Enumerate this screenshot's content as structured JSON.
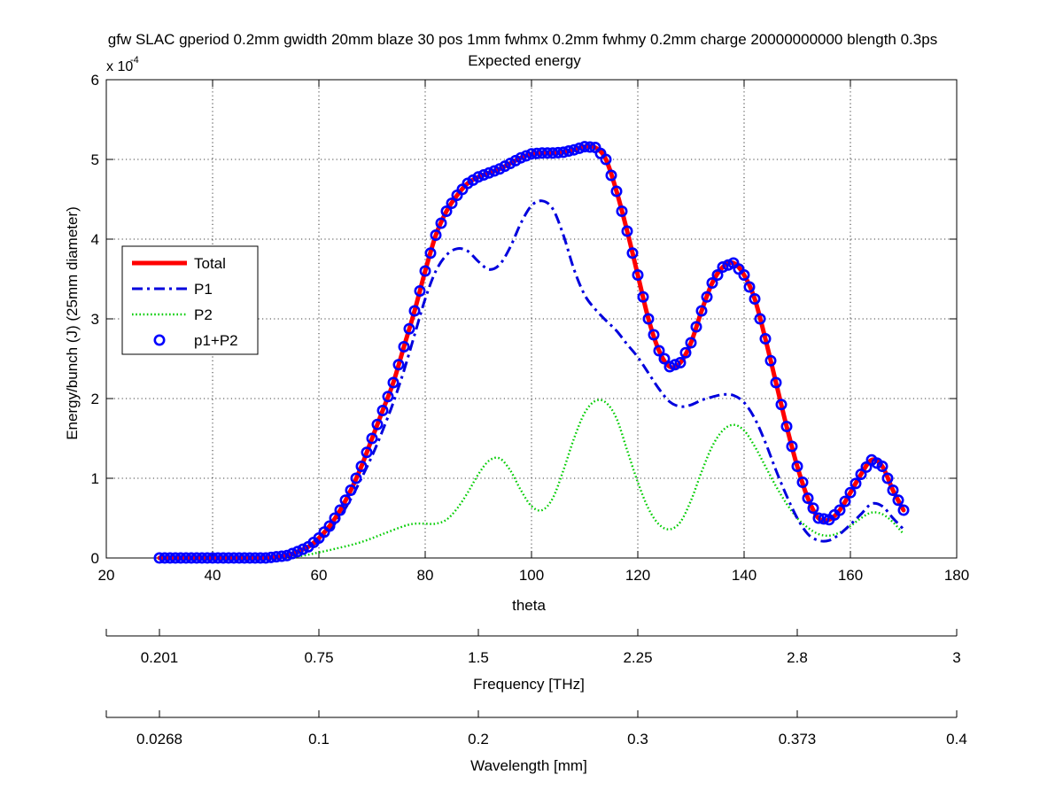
{
  "chart_data": {
    "type": "line",
    "title": "gfw SLAC gperiod 0.2mm gwidth 20mm blaze 30 pos 1mm fwhmx 0.2mm fwhmy 0.2mm charge 20000000000 blength 0.3ps",
    "subtitle": "Expected energy",
    "xlabel": "theta",
    "ylabel": "Energy/bunch (J) (25mm diameter)",
    "y_exponent_label": "x 10",
    "y_exponent_power": "-4",
    "xlim": [
      20,
      180
    ],
    "ylim": [
      0,
      6
    ],
    "x_ticks": [
      20,
      40,
      60,
      80,
      100,
      120,
      140,
      160,
      180
    ],
    "y_ticks": [
      0,
      1,
      2,
      3,
      4,
      5,
      6
    ],
    "grid": true,
    "legend_position": "left-middle",
    "secondary_axes": [
      {
        "label": "Frequency [THz]",
        "ticks": [
          {
            "theta": 20,
            "label": ""
          },
          {
            "theta": 30,
            "label": "0.201"
          },
          {
            "theta": 60,
            "label": "0.75"
          },
          {
            "theta": 90,
            "label": "1.5"
          },
          {
            "theta": 120,
            "label": "2.25"
          },
          {
            "theta": 150,
            "label": "2.8"
          },
          {
            "theta": 180,
            "label": "3"
          }
        ]
      },
      {
        "label": "Wavelength [mm]",
        "ticks": [
          {
            "theta": 20,
            "label": ""
          },
          {
            "theta": 30,
            "label": "0.0268"
          },
          {
            "theta": 60,
            "label": "0.1"
          },
          {
            "theta": 90,
            "label": "0.2"
          },
          {
            "theta": 120,
            "label": "0.3"
          },
          {
            "theta": 150,
            "label": "0.373"
          },
          {
            "theta": 180,
            "label": "0.4"
          }
        ]
      }
    ],
    "series": [
      {
        "name": "Total",
        "style": "solid",
        "color": "#ff0000",
        "x": [
          30,
          40,
          50,
          54,
          56,
          58,
          60,
          62,
          64,
          66,
          68,
          70,
          72,
          74,
          76,
          78,
          80,
          82,
          84,
          86,
          88,
          90,
          92,
          94,
          96,
          98,
          100,
          102,
          104,
          106,
          108,
          110,
          112,
          114,
          116,
          118,
          120,
          122,
          124,
          126,
          128,
          130,
          132,
          134,
          136,
          138,
          140,
          142,
          144,
          146,
          148,
          150,
          152,
          154,
          156,
          158,
          160,
          162,
          164,
          166,
          168,
          170
        ],
        "y": [
          0,
          0,
          0,
          0.03,
          0.08,
          0.14,
          0.25,
          0.4,
          0.6,
          0.85,
          1.15,
          1.5,
          1.85,
          2.2,
          2.65,
          3.1,
          3.6,
          4.05,
          4.35,
          4.55,
          4.7,
          4.78,
          4.83,
          4.88,
          4.95,
          5.02,
          5.07,
          5.08,
          5.08,
          5.09,
          5.12,
          5.16,
          5.15,
          5.0,
          4.6,
          4.1,
          3.55,
          3.0,
          2.6,
          2.4,
          2.45,
          2.7,
          3.1,
          3.45,
          3.65,
          3.7,
          3.55,
          3.25,
          2.75,
          2.2,
          1.65,
          1.15,
          0.75,
          0.5,
          0.48,
          0.6,
          0.82,
          1.05,
          1.23,
          1.15,
          0.85,
          0.6
        ]
      },
      {
        "name": "P1",
        "style": "dashdot",
        "color": "#0000dd",
        "x": [
          30,
          40,
          50,
          54,
          56,
          58,
          60,
          62,
          64,
          66,
          68,
          70,
          72,
          74,
          76,
          78,
          80,
          82,
          84,
          86,
          88,
          90,
          92,
          94,
          96,
          98,
          100,
          102,
          104,
          106,
          108,
          110,
          112,
          114,
          116,
          118,
          120,
          122,
          124,
          126,
          128,
          130,
          132,
          134,
          136,
          138,
          140,
          142,
          144,
          146,
          148,
          150,
          152,
          154,
          156,
          158,
          160,
          162,
          164,
          166,
          168,
          170
        ],
        "y": [
          0,
          0,
          0,
          0.02,
          0.06,
          0.12,
          0.22,
          0.35,
          0.52,
          0.74,
          1.0,
          1.28,
          1.6,
          1.95,
          2.35,
          2.8,
          3.25,
          3.6,
          3.8,
          3.88,
          3.85,
          3.72,
          3.62,
          3.68,
          3.9,
          4.2,
          4.42,
          4.48,
          4.38,
          4.05,
          3.62,
          3.3,
          3.12,
          2.98,
          2.85,
          2.68,
          2.52,
          2.32,
          2.12,
          1.96,
          1.9,
          1.92,
          1.98,
          2.02,
          2.05,
          2.04,
          1.95,
          1.75,
          1.45,
          1.1,
          0.78,
          0.5,
          0.3,
          0.22,
          0.22,
          0.3,
          0.42,
          0.55,
          0.68,
          0.65,
          0.5,
          0.36
        ]
      },
      {
        "name": "P2",
        "style": "dotted",
        "color": "#00cc00",
        "x": [
          30,
          50,
          56,
          60,
          64,
          68,
          72,
          76,
          78,
          80,
          82,
          84,
          86,
          88,
          90,
          92,
          94,
          96,
          98,
          100,
          102,
          104,
          106,
          108,
          110,
          112,
          114,
          116,
          118,
          120,
          122,
          124,
          126,
          128,
          130,
          132,
          134,
          136,
          138,
          140,
          142,
          144,
          146,
          148,
          150,
          152,
          154,
          156,
          158,
          160,
          162,
          164,
          166,
          168,
          170
        ],
        "y": [
          0,
          0,
          0.02,
          0.07,
          0.13,
          0.2,
          0.3,
          0.4,
          0.43,
          0.43,
          0.43,
          0.48,
          0.62,
          0.82,
          1.05,
          1.22,
          1.25,
          1.1,
          0.85,
          0.65,
          0.6,
          0.75,
          1.1,
          1.5,
          1.82,
          1.97,
          1.95,
          1.75,
          1.35,
          0.95,
          0.62,
          0.42,
          0.36,
          0.45,
          0.72,
          1.08,
          1.4,
          1.6,
          1.67,
          1.6,
          1.4,
          1.15,
          0.9,
          0.68,
          0.5,
          0.38,
          0.3,
          0.28,
          0.32,
          0.4,
          0.5,
          0.57,
          0.55,
          0.45,
          0.3
        ]
      },
      {
        "name": "p1+P2",
        "style": "markers",
        "color": "#0000ff",
        "x_start": 30,
        "x_end": 170,
        "x_step": 1
      }
    ]
  }
}
